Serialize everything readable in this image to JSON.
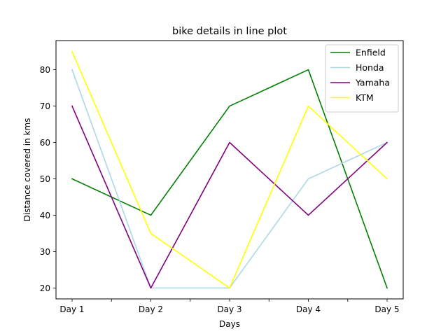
{
  "chart_data": {
    "type": "line",
    "title": "bike details in line plot",
    "xlabel": "Days",
    "ylabel": "Distance covered in kms",
    "categories": [
      "Day 1",
      "Day 2",
      "Day 3",
      "Day 4",
      "Day 5"
    ],
    "series": [
      {
        "name": "Enfield",
        "color": "#008000",
        "values": [
          50,
          40,
          70,
          80,
          20
        ]
      },
      {
        "name": "Honda",
        "color": "#add8e6",
        "values": [
          80,
          20,
          20,
          50,
          60
        ]
      },
      {
        "name": "Yamaha",
        "color": "#800080",
        "values": [
          70,
          20,
          60,
          40,
          60
        ]
      },
      {
        "name": "KTM",
        "color": "#ffff00",
        "values": [
          85,
          35,
          20,
          70,
          50
        ]
      }
    ],
    "yticks": [
      20,
      30,
      40,
      50,
      60,
      70,
      80
    ],
    "ylim": [
      17,
      88
    ],
    "grid": false,
    "legend_position": "top-right"
  }
}
